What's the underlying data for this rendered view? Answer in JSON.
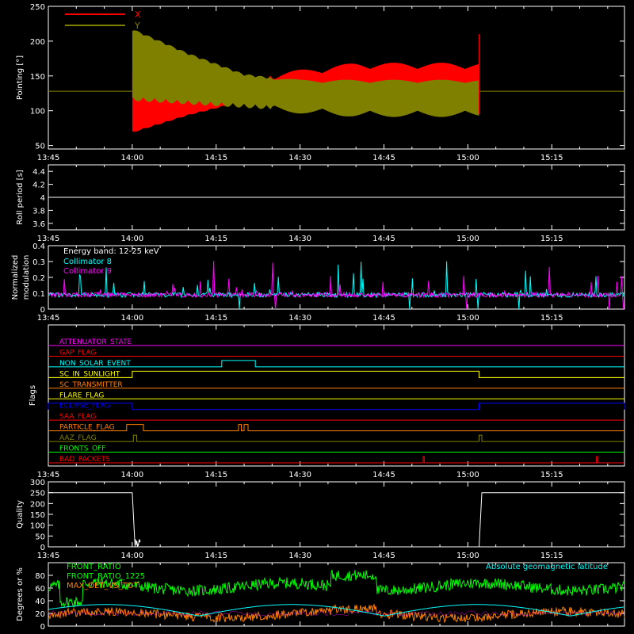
{
  "time_ticks": [
    "13:45",
    "14:00",
    "14:15",
    "14:30",
    "14:45",
    "15:00",
    "15:15"
  ],
  "chart_data": [
    {
      "type": "area",
      "panel": "pointing",
      "ylabel": "Pointing [°]",
      "ylim": [
        45,
        250
      ],
      "yticks": [
        50,
        100,
        150,
        200,
        250
      ],
      "legend": [
        {
          "name": "X",
          "color": "#ff0000"
        },
        {
          "name": "Y",
          "color": "#808000"
        }
      ],
      "baseline": 128,
      "active_start": "14:00",
      "active_end": "15:02",
      "series": [
        {
          "name": "X",
          "color": "#ff0000",
          "x": [
            "14:00",
            "14:10",
            "14:20",
            "14:30",
            "14:40",
            "14:50",
            "15:00",
            "15:02"
          ],
          "low": [
            70,
            95,
            115,
            125,
            130,
            135,
            135,
            135
          ],
          "high": [
            155,
            145,
            140,
            150,
            160,
            160,
            160,
            160
          ]
        },
        {
          "name": "Y",
          "color": "#808000",
          "x": [
            "14:00",
            "14:10",
            "14:20",
            "14:30",
            "14:40",
            "14:50",
            "15:00",
            "15:02"
          ],
          "low": [
            120,
            115,
            110,
            105,
            100,
            100,
            100,
            100
          ],
          "high": [
            215,
            180,
            150,
            140,
            140,
            140,
            140,
            140
          ]
        }
      ]
    },
    {
      "type": "line",
      "panel": "roll",
      "ylabel": "Roll period [s]",
      "ylim": [
        3.5,
        4.5
      ],
      "yticks": [
        3.6,
        3.8,
        4.0,
        4.2,
        4.4
      ],
      "series": [
        {
          "name": "",
          "color": "#ffffff",
          "value": 4.0
        }
      ]
    },
    {
      "type": "line",
      "panel": "modulation",
      "ylabel": "Normalized modulation",
      "ylim": [
        0,
        0.4
      ],
      "yticks": [
        0.0,
        0.1,
        0.2,
        0.3,
        0.4
      ],
      "legend_title": "Energy band: 12-25 keV",
      "series": [
        {
          "name": "Collimator 8",
          "color": "#00ffff",
          "mean": 0.09
        },
        {
          "name": "Collimator 9",
          "color": "#ff00ff",
          "mean": 0.09
        }
      ]
    },
    {
      "type": "line",
      "panel": "flags",
      "ylabel": "Flags",
      "flags": [
        {
          "name": "ATTENUATOR_STATE",
          "color": "#ff00ff",
          "on": []
        },
        {
          "name": "GAP_FLAG",
          "color": "#ff0000",
          "on": []
        },
        {
          "name": "NON_SOLAR_EVENT",
          "color": "#00ffff",
          "on": [
            [
              "14:16",
              "14:22"
            ]
          ]
        },
        {
          "name": "SC_IN_SUNLIGHT",
          "color": "#ffff00",
          "on": [
            [
              "14:00",
              "15:02"
            ]
          ]
        },
        {
          "name": "SC_TRANSMITTER",
          "color": "#ff7f00",
          "on": []
        },
        {
          "name": "FLARE_FLAG",
          "color": "#ffff00",
          "on": []
        },
        {
          "name": "ECLIPSE_FLAG",
          "color": "#0000ff",
          "on": [
            [
              "13:45",
              "14:00"
            ],
            [
              "15:02",
              "15:28"
            ]
          ]
        },
        {
          "name": "SAA_FLAG",
          "color": "#ff0000",
          "on": []
        },
        {
          "name": "PARTICLE_FLAG",
          "color": "#ff7f00",
          "on": [
            [
              "13:59",
              "14:02"
            ],
            [
              "14:19",
              "14:19.5"
            ],
            [
              "14:20",
              "14:20.7"
            ]
          ]
        },
        {
          "name": "AAZ_FLAG",
          "color": "#808000",
          "on": [
            [
              "14:00.2",
              "14:00.8"
            ],
            [
              "15:02",
              "15:02.5"
            ]
          ]
        },
        {
          "name": "FRONTS_OFF",
          "color": "#00ff00",
          "on": []
        },
        {
          "name": "BAD_PACKETS",
          "color": "#ff0000",
          "on": [
            [
              "14:52",
              "14:52.2"
            ],
            [
              "15:23",
              "15:23.2"
            ]
          ]
        }
      ]
    },
    {
      "type": "line",
      "panel": "quality",
      "ylabel": "Quality",
      "ylim": [
        0,
        300
      ],
      "yticks": [
        0,
        50,
        100,
        150,
        200,
        250,
        300
      ],
      "series": [
        {
          "name": "",
          "color": "#ffffff",
          "x": [
            "13:45",
            "14:00",
            "14:00.5",
            "15:02",
            "15:02.5",
            "15:28"
          ],
          "values": [
            250,
            250,
            0,
            0,
            250,
            250
          ]
        }
      ]
    },
    {
      "type": "line",
      "panel": "ratios",
      "ylabel": "Degrees or %",
      "ylim": [
        0,
        100
      ],
      "yticks": [
        0,
        20,
        40,
        60,
        80
      ],
      "right_label": "Absolute geomagnetic latitude",
      "series": [
        {
          "name": "FRONT_RATIO",
          "color": "#00ff00",
          "mean": 62
        },
        {
          "name": "FRONT_RATIO_1225",
          "color": "#ff00ff",
          "mean": 20
        },
        {
          "name": "MAX_DET_VS_TOT",
          "color": "#ff7f00",
          "mean": 18
        },
        {
          "name": "Absolute geomagnetic latitude",
          "color": "#00ffff",
          "mean": 20
        }
      ]
    }
  ]
}
